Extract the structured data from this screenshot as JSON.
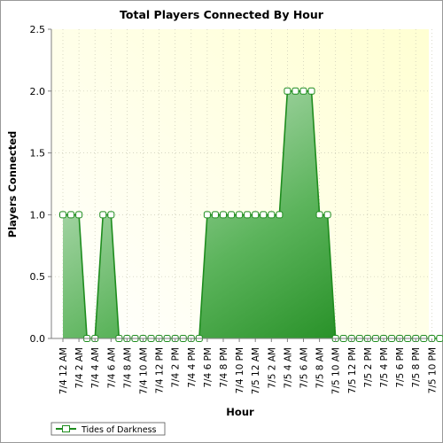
{
  "chart_data": {
    "type": "area",
    "title": "Total Players Connected By Hour",
    "xlabel": "Hour",
    "ylabel": "Players Connected",
    "ylim": [
      0,
      2.5
    ],
    "yticks": [
      "0.0",
      "0.5",
      "1.0",
      "1.5",
      "2.0",
      "2.5"
    ],
    "x": [
      "7/4 12 AM",
      "7/4 1 AM",
      "7/4 2 AM",
      "7/4 3 AM",
      "7/4 4 AM",
      "7/4 5 AM",
      "7/4 6 AM",
      "7/4 7 AM",
      "7/4 8 AM",
      "7/4 9 AM",
      "7/4 10 AM",
      "7/4 11 AM",
      "7/4 12 PM",
      "7/4 1 PM",
      "7/4 2 PM",
      "7/4 3 PM",
      "7/4 4 PM",
      "7/4 5 PM",
      "7/4 6 PM",
      "7/4 7 PM",
      "7/4 8 PM",
      "7/4 9 PM",
      "7/4 10 PM",
      "7/4 11 PM",
      "7/5 12 AM",
      "7/5 1 AM",
      "7/5 2 AM",
      "7/5 3 AM",
      "7/5 4 AM",
      "7/5 5 AM",
      "7/5 6 AM",
      "7/5 7 AM",
      "7/5 8 AM",
      "7/5 9 AM",
      "7/5 10 AM",
      "7/5 11 AM",
      "7/5 12 PM",
      "7/5 1 PM",
      "7/5 2 PM",
      "7/5 3 PM",
      "7/5 4 PM",
      "7/5 5 PM",
      "7/5 6 PM",
      "7/5 7 PM",
      "7/5 8 PM",
      "7/5 9 PM",
      "7/5 10 PM",
      "7/5 11 PM"
    ],
    "xticks": [
      "7/4 12 AM",
      "7/4 2 AM",
      "7/4 4 AM",
      "7/4 6 AM",
      "7/4 8 AM",
      "7/4 10 AM",
      "7/4 12 PM",
      "7/4 2 PM",
      "7/4 4 PM",
      "7/4 6 PM",
      "7/4 8 PM",
      "7/4 10 PM",
      "7/5 12 AM",
      "7/5 2 AM",
      "7/5 4 AM",
      "7/5 6 AM",
      "7/5 8 AM",
      "7/5 10 AM",
      "7/5 12 PM",
      "7/5 2 PM",
      "7/5 4 PM",
      "7/5 6 PM",
      "7/5 8 PM",
      "7/5 10 PM"
    ],
    "series": [
      {
        "name": "Tides of Darkness",
        "color": "#1e8c1e",
        "values": [
          1,
          1,
          1,
          0,
          0,
          1,
          1,
          0,
          0,
          0,
          0,
          0,
          0,
          0,
          0,
          0,
          0,
          0,
          1,
          1,
          1,
          1,
          1,
          1,
          1,
          1,
          1,
          1,
          2,
          2,
          2,
          2,
          1,
          1,
          0,
          0,
          0,
          0,
          0,
          0,
          0,
          0,
          0,
          0,
          0,
          0,
          0,
          0
        ]
      }
    ],
    "grid": true,
    "legend": "bottom-left",
    "background_gradient": [
      "#ffffff",
      "#ffffd2"
    ]
  }
}
